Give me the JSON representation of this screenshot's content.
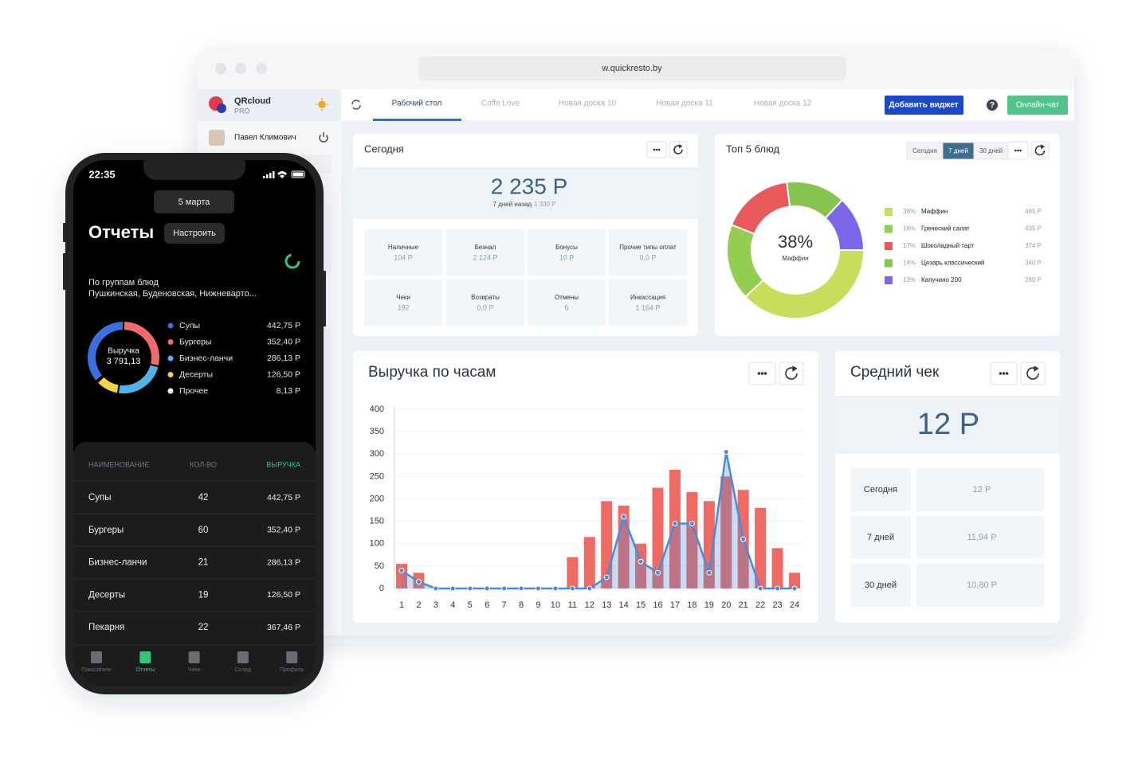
{
  "browser": {
    "url": "w.quickresto.by"
  },
  "sidebar": {
    "brand": "QRcloud",
    "plan": "PRO",
    "user": "Павел Климович"
  },
  "tabs": [
    "Рабочий стол",
    "Coffe Love",
    "Новая доска 10",
    "Новая доска 11",
    "Новая доска 12"
  ],
  "toolbar": {
    "add_widget": "Добавить виджет",
    "help": "?",
    "chat": "Онлайн-чат"
  },
  "today_widget": {
    "title": "Сегодня",
    "total": "2 235 Р",
    "compare_label": "7 дней назад",
    "compare_value": "1 330 Р",
    "cells": [
      {
        "label": "Наличные",
        "value": "104 Р"
      },
      {
        "label": "Безнал",
        "value": "2 124 Р"
      },
      {
        "label": "Бонусы",
        "value": "10 Р"
      },
      {
        "label": "Прочие типы оплат",
        "value": "0,0 Р"
      },
      {
        "label": "Чеки",
        "value": "192"
      },
      {
        "label": "Возвраты",
        "value": "0,0 Р"
      },
      {
        "label": "Отмены",
        "value": "6"
      },
      {
        "label": "Инкассация",
        "value": "1 164 Р"
      }
    ]
  },
  "top5_widget": {
    "periods": [
      "Сегодня",
      "7 дней",
      "30 дней"
    ]
  },
  "avg_check_widget": {
    "title": "Средний чек",
    "value": "12 Р",
    "rows": [
      {
        "label": "Сегодня",
        "value": "12 Р"
      },
      {
        "label": "7 дней",
        "value": "11,94 Р"
      },
      {
        "label": "30 дней",
        "value": "10,80 Р"
      }
    ]
  },
  "chart_data": [
    {
      "type": "combo",
      "title": "Выручка по часам",
      "categories": [
        1,
        2,
        3,
        4,
        5,
        6,
        7,
        8,
        9,
        10,
        11,
        12,
        13,
        14,
        15,
        16,
        17,
        18,
        19,
        20,
        21,
        22,
        23,
        24
      ],
      "series": [
        {
          "type": "bar",
          "color": "#ee6a64",
          "values": [
            55,
            35,
            0,
            0,
            0,
            0,
            0,
            0,
            0,
            0,
            70,
            115,
            195,
            185,
            100,
            225,
            265,
            215,
            195,
            250,
            220,
            180,
            90,
            35
          ]
        },
        {
          "type": "line",
          "color": "#4a8ad8",
          "values": [
            40,
            15,
            0,
            0,
            0,
            0,
            0,
            0,
            0,
            0,
            0,
            0,
            25,
            160,
            60,
            35,
            145,
            145,
            35,
            305,
            110,
            0,
            0,
            0
          ]
        }
      ],
      "ylim": [
        0,
        400
      ],
      "yticks": [
        0,
        50,
        100,
        150,
        200,
        250,
        300,
        350,
        400
      ],
      "grid": true
    },
    {
      "type": "donut",
      "title": "Топ 5 блюд",
      "categories": [
        "Маффин",
        "Греческий салат",
        "Шоколадный тарт",
        "Цезарь классический",
        "Капучино 200"
      ],
      "values": [
        38,
        18,
        17,
        14,
        13
      ],
      "value_labels": [
        "38%",
        "18%",
        "17%",
        "14%",
        "13%"
      ],
      "amounts": [
        "465 Р",
        "435 Р",
        "374 Р",
        "340 Р",
        "280 Р"
      ],
      "colors": [
        "#c9dd5c",
        "#93cd52",
        "#e9585a",
        "#86c34f",
        "#7b68e8"
      ]
    },
    {
      "type": "donut",
      "title": "По группам блюд",
      "subtitle": "Пушкинская, Буденовская, Нижневарто...",
      "center_title": "Выручка",
      "center_value": "3 791,13",
      "categories": [
        "Супы",
        "Бургеры",
        "Бизнес-ланчи",
        "Десерты",
        "Прочее"
      ],
      "values": [
        442.75,
        352.4,
        286.13,
        126.5,
        8.13
      ],
      "value_labels": [
        "442,75 Р",
        "352,40 Р",
        "286,13 Р",
        "126,50 Р",
        "8,13 Р"
      ],
      "colors": [
        "#3b6fe0",
        "#f06b6b",
        "#4fb3e8",
        "#f5d547",
        "#ffffff"
      ]
    }
  ],
  "phone": {
    "time": "22:35",
    "date": "5 марта",
    "title": "Отчеты",
    "settings": "Настроить",
    "table": {
      "header": [
        "НАИМЕНОВАНИЕ",
        "КОЛ-ВО",
        "ВЫРУЧКА"
      ],
      "rows": [
        [
          "Супы",
          42,
          "442,75 Р"
        ],
        [
          "Бургеры",
          60,
          "352,40 Р"
        ],
        [
          "Бизнес-ланчи",
          21,
          "286,13 Р"
        ],
        [
          "Десерты",
          19,
          "126,50 Р"
        ],
        [
          "Пекарня",
          22,
          "367,46 Р"
        ]
      ]
    },
    "nav": [
      "Показатели",
      "Отчеты",
      "Чеки",
      "Склад",
      "Профиль"
    ]
  }
}
